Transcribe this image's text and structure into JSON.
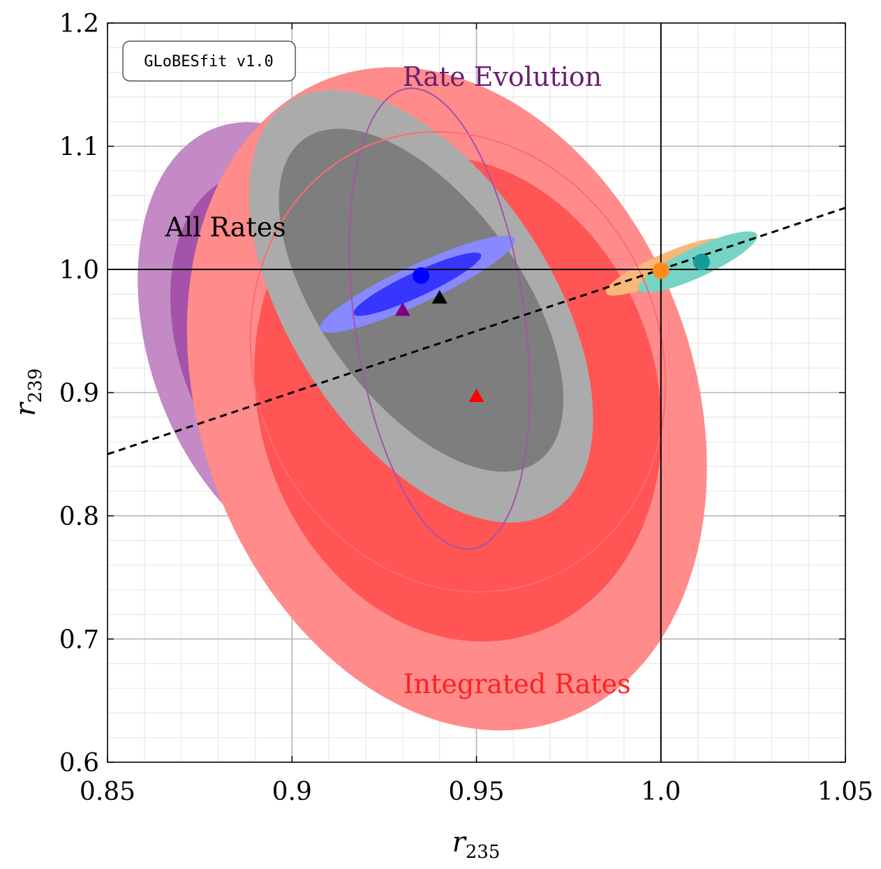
{
  "badge": "GLoBESfit v1.0",
  "chart_data": {
    "type": "scatter",
    "title": "",
    "xlabel": {
      "base": "r",
      "sub": "235"
    },
    "ylabel": {
      "base": "r",
      "sub": "239"
    },
    "xlim": [
      0.85,
      1.05
    ],
    "ylim": [
      0.6,
      1.2
    ],
    "x_ticks": [
      0.85,
      0.9,
      0.95,
      1.0,
      1.05
    ],
    "x_tick_labels": [
      "0.85",
      "0.9",
      "0.95",
      "1.0",
      "1.05"
    ],
    "y_ticks": [
      0.6,
      0.7,
      0.8,
      0.9,
      1.0,
      1.1,
      1.2
    ],
    "y_tick_labels": [
      "0.6",
      "0.7",
      "0.8",
      "0.9",
      "1.0",
      "1.1",
      "1.2"
    ],
    "minor_step_x": 0.01,
    "minor_step_y": 0.02,
    "grid": true,
    "reference_lines": {
      "x": 1.0,
      "y": 1.0
    },
    "dashed_line": {
      "x": [
        0.85,
        1.05
      ],
      "y": [
        0.85,
        1.05
      ]
    },
    "regions": [
      {
        "name": "rate-evolution-2sigma",
        "cx": 0.9,
        "cy": 0.94,
        "rx": 0.062,
        "ry": 0.116,
        "angle_deg": 71,
        "fill": "#c38ac6"
      },
      {
        "name": "rate-evolution-1sigma",
        "cx": 0.9,
        "cy": 0.94,
        "rx": 0.048,
        "ry": 0.092,
        "angle_deg": 71,
        "fill": "#a553aa"
      },
      {
        "name": "integrated-rates-2sigma",
        "cx": 0.942,
        "cy": 0.895,
        "rx": 0.067,
        "ry": 0.277,
        "angle_deg": -20,
        "fill": "#ff8b8b"
      },
      {
        "name": "integrated-rates-1sigma",
        "cx": 0.945,
        "cy": 0.895,
        "rx": 0.054,
        "ry": 0.2,
        "angle_deg": -17,
        "fill": "#ff5555"
      },
      {
        "name": "all-rates-2sigma",
        "cx": 0.935,
        "cy": 0.97,
        "rx": 0.066,
        "ry": 0.106,
        "angle_deg": 57,
        "fill": "#ababab"
      },
      {
        "name": "all-rates-1sigma",
        "cx": 0.935,
        "cy": 0.975,
        "rx": 0.054,
        "ry": 0.081,
        "angle_deg": 54,
        "fill": "#7e7e7e"
      },
      {
        "name": "highlight-2sigma",
        "cx": 0.934,
        "cy": 0.988,
        "rx": 0.0052,
        "ry": 0.087,
        "angle_deg": 65,
        "fill": "#8888ff"
      },
      {
        "name": "highlight-1sigma",
        "cx": 0.934,
        "cy": 0.988,
        "rx": 0.0033,
        "ry": 0.057,
        "angle_deg": 65,
        "fill": "#3636ff"
      },
      {
        "name": "orange-fit",
        "cx": 1.001,
        "cy": 1.002,
        "rx": 0.0035,
        "ry": 0.052,
        "angle_deg": 66,
        "fill": "#f8b87a"
      },
      {
        "name": "teal-fit",
        "cx": 1.01,
        "cy": 1.006,
        "rx": 0.004,
        "ry": 0.053,
        "angle_deg": 65,
        "fill": "#76d3c6"
      }
    ],
    "outlines": [
      {
        "name": "rate-evolution-outline",
        "cx": 0.94,
        "cy": 0.96,
        "rx": 0.063,
        "ry": 0.069,
        "angle_deg": 82,
        "stroke": "#a553aa"
      },
      {
        "name": "integrated-rates-outline",
        "cx": 0.945,
        "cy": 0.925,
        "rx": 0.055,
        "ry": 0.19,
        "angle_deg": -22,
        "stroke": "#ff6b6b"
      }
    ],
    "points": [
      {
        "name": "blue-best-fit",
        "shape": "circle",
        "x": 0.935,
        "y": 0.995,
        "color": "#0000ff"
      },
      {
        "name": "orange-best-fit",
        "shape": "circle",
        "x": 1.0,
        "y": 0.999,
        "color": "#ff8c1a"
      },
      {
        "name": "teal-best-fit",
        "shape": "circle",
        "x": 1.011,
        "y": 1.006,
        "color": "#159a95"
      },
      {
        "name": "all-rates-best-fit",
        "shape": "triangle",
        "x": 0.94,
        "y": 0.977,
        "color": "#000000"
      },
      {
        "name": "rate-evolution-best-fit",
        "shape": "triangle",
        "x": 0.93,
        "y": 0.967,
        "color": "#800080"
      },
      {
        "name": "integrated-rates-best-fit",
        "shape": "triangle",
        "x": 0.95,
        "y": 0.897,
        "color": "#ff0000"
      }
    ],
    "labels": [
      {
        "name": "rate-evolution-label",
        "text": "Rate Evolution",
        "x": 0.957,
        "y": 1.149,
        "color": "#6b1e73"
      },
      {
        "name": "all-rates-label",
        "text": "All Rates",
        "x": 0.882,
        "y": 1.027,
        "color": "#000000"
      },
      {
        "name": "integrated-rates-label",
        "text": "Integrated Rates",
        "x": 0.961,
        "y": 0.656,
        "color": "#ff2020"
      }
    ]
  }
}
